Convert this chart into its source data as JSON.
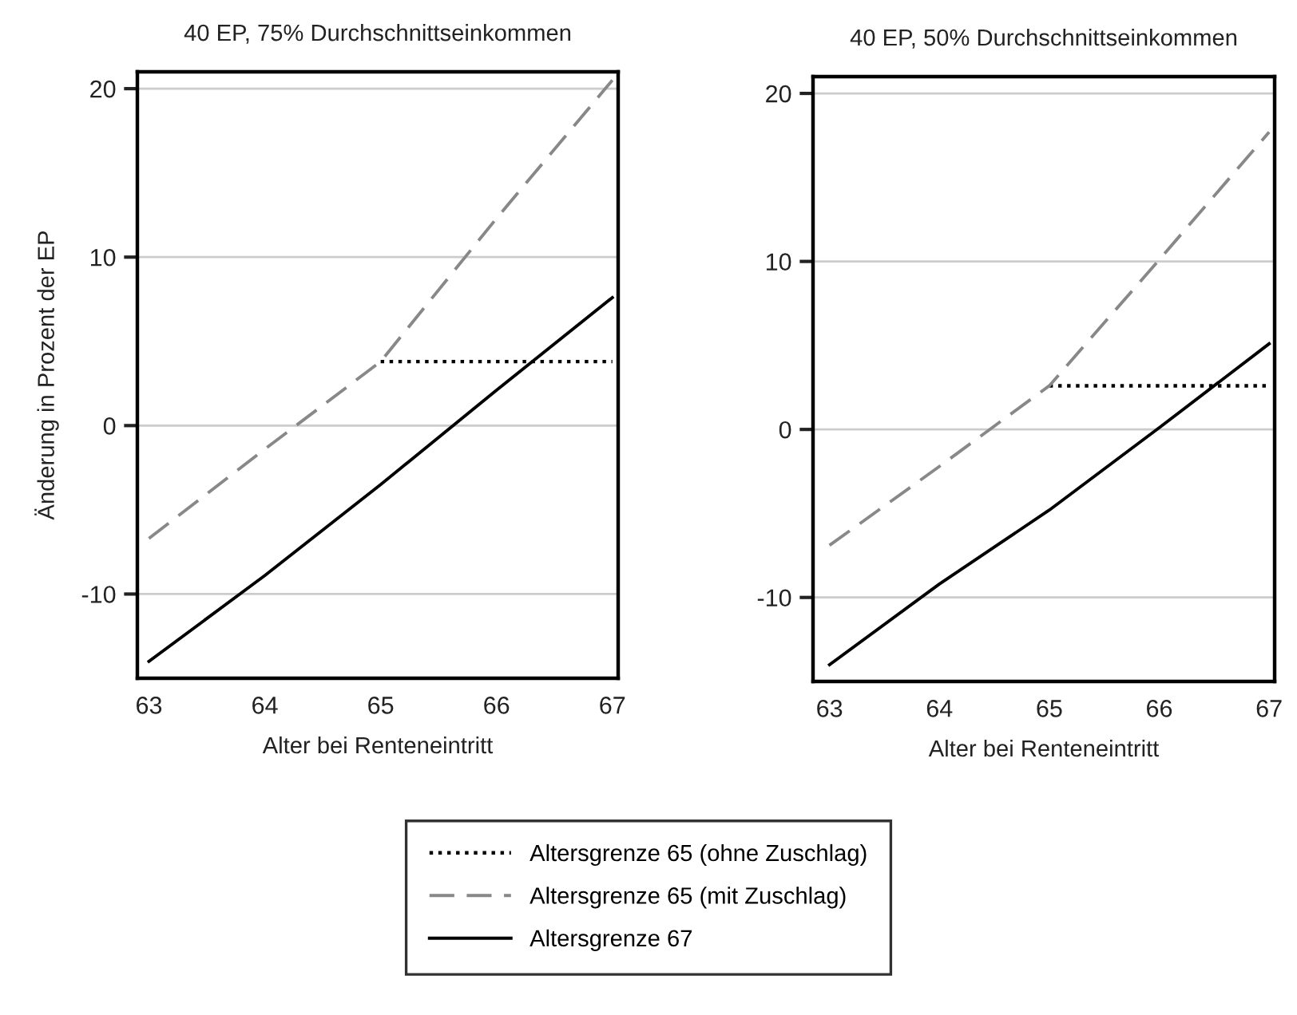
{
  "chart_data": [
    {
      "type": "line",
      "title": "40 EP, 75% Durchschnittseinkommen",
      "xlabel": "Alter bei Renteneintritt",
      "ylabel": "Änderung in Prozent der EP",
      "xlim": [
        62.9,
        67.05
      ],
      "xticks": [
        63,
        64,
        65,
        66,
        67
      ],
      "ylim": [
        -15,
        21
      ],
      "yticks": [
        -10,
        0,
        10,
        20
      ],
      "grid": "y",
      "legend": "bottom",
      "marker": "none",
      "series": [
        {
          "name": "Altersgrenze 65 (ohne Zuschlag)",
          "color": "#000000",
          "line_style": "dotted",
          "x": [
            65,
            66,
            67
          ],
          "values": [
            3.8,
            3.8,
            3.8
          ]
        },
        {
          "name": "Altersgrenze 65 (mit Zuschlag)",
          "color": "#888888",
          "line_style": "dashed",
          "x": [
            63,
            64,
            65,
            66,
            67
          ],
          "values": [
            -6.7,
            -1.4,
            3.8,
            12.3,
            20.5
          ]
        },
        {
          "name": "Altersgrenze 67",
          "color": "#000000",
          "line_style": "solid",
          "x": [
            63,
            64,
            65,
            66,
            67
          ],
          "values": [
            -14.0,
            -8.9,
            -3.5,
            2.1,
            7.6
          ]
        }
      ]
    },
    {
      "type": "line",
      "title": "40 EP, 50% Durchschnittseinkommen",
      "xlabel": "Alter bei Renteneintritt",
      "xlim": [
        62.85,
        67.05
      ],
      "xticks": [
        63,
        64,
        65,
        66,
        67
      ],
      "ylim": [
        -15,
        21
      ],
      "yticks": [
        -10,
        0,
        10,
        20
      ],
      "grid": "y",
      "marker": "none",
      "series": [
        {
          "color": "#000000",
          "line_style": "dotted",
          "x": [
            65,
            66,
            67
          ],
          "values": [
            2.6,
            2.6,
            2.6
          ]
        },
        {
          "color": "#888888",
          "line_style": "dashed",
          "x": [
            63,
            64,
            65,
            66,
            67
          ],
          "values": [
            -6.9,
            -2.2,
            2.6,
            10.1,
            17.7
          ]
        },
        {
          "color": "#000000",
          "line_style": "solid",
          "x": [
            63,
            64,
            65,
            66,
            67
          ],
          "values": [
            -14.0,
            -9.2,
            -4.8,
            0.1,
            5.1
          ]
        }
      ]
    }
  ]
}
